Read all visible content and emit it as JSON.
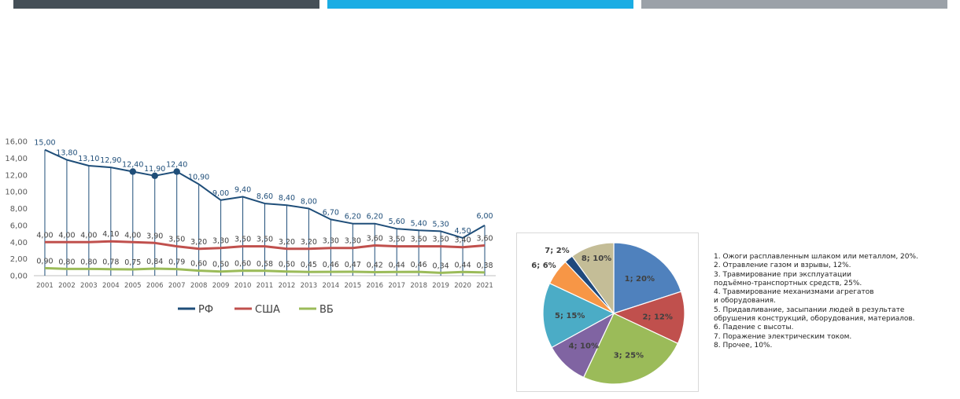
{
  "colors": {
    "bar1": "#454F57",
    "bar2": "#1AADE4",
    "bar3": "#9BA1A8"
  },
  "chart_data": [
    {
      "type": "line",
      "categories": [
        "2001",
        "2002",
        "2003",
        "2004",
        "2005",
        "2006",
        "2007",
        "2008",
        "2009",
        "2010",
        "2011",
        "2012",
        "2013",
        "2014",
        "2015",
        "2016",
        "2017",
        "2018",
        "2019",
        "2020",
        "2021"
      ],
      "y_ticks": [
        "0,00",
        "2,00",
        "4,00",
        "6,00",
        "8,00",
        "10,00",
        "12,00",
        "14,00",
        "16,00"
      ],
      "ylim": [
        0,
        16
      ],
      "grid": false,
      "legend_position": "bottom",
      "series": [
        {
          "name": "РФ",
          "color": "#1F4E79",
          "values": [
            15.0,
            13.8,
            13.1,
            12.9,
            12.4,
            11.9,
            12.4,
            10.9,
            9.0,
            9.4,
            8.6,
            8.4,
            8.0,
            6.7,
            6.2,
            6.2,
            5.6,
            5.4,
            5.3,
            4.5,
            6.0
          ],
          "labels": [
            "15,00",
            "13,80",
            "13,10",
            "12,90",
            "12,40",
            "11,90",
            "12,40",
            "10,90",
            "9,00",
            "9,40",
            "8,60",
            "8,40",
            "8,00",
            "6,70",
            "6,20",
            "6,20",
            "5,60",
            "5,40",
            "5,30",
            "4,50",
            "6,00"
          ]
        },
        {
          "name": "США",
          "color": "#C0504D",
          "values": [
            4.0,
            4.0,
            4.0,
            4.1,
            4.0,
            3.9,
            3.5,
            3.2,
            3.3,
            3.5,
            3.5,
            3.2,
            3.2,
            3.3,
            3.3,
            3.6,
            3.5,
            3.5,
            3.5,
            3.4,
            3.6
          ],
          "labels": [
            "4,00",
            "4,00",
            "4,00",
            "4,10",
            "4,00",
            "3,90",
            "3,50",
            "3,20",
            "3,30",
            "3,50",
            "3,50",
            "3,20",
            "3,20",
            "3,30",
            "3,30",
            "3,60",
            "3,50",
            "3,50",
            "3,50",
            "3,40",
            "3,60"
          ]
        },
        {
          "name": "ВБ",
          "color": "#9BBB59",
          "values": [
            0.9,
            0.8,
            0.8,
            0.78,
            0.75,
            0.84,
            0.79,
            0.6,
            0.5,
            0.6,
            0.58,
            0.5,
            0.45,
            0.46,
            0.47,
            0.42,
            0.44,
            0.46,
            0.34,
            0.44,
            0.38
          ],
          "labels": [
            "0,90",
            "0,80",
            "0,80",
            "0,78",
            "0,75",
            "0,84",
            "0,79",
            "0,60",
            "0,50",
            "0,60",
            "0,58",
            "0,50",
            "0,45",
            "0,46",
            "0,47",
            "0,42",
            "0,44",
            "0,46",
            "0,34",
            "0,44",
            "0,38"
          ]
        }
      ]
    },
    {
      "type": "pie",
      "slices": [
        {
          "label": "1; 20%",
          "value": 20,
          "color": "#4F81BD"
        },
        {
          "label": "2; 12%",
          "value": 12,
          "color": "#C0504D"
        },
        {
          "label": "3; 25%",
          "value": 25,
          "color": "#9BBB59"
        },
        {
          "label": "4; 10%",
          "value": 10,
          "color": "#8064A2"
        },
        {
          "label": "5; 15%",
          "value": 15,
          "color": "#4BACC6"
        },
        {
          "label": "6; 6%",
          "value": 6,
          "color": "#F79646"
        },
        {
          "label": "7; 2%",
          "value": 2,
          "color": "#1F497D"
        },
        {
          "label": "8; 10%",
          "value": 10,
          "color": "#C4BD97"
        }
      ]
    }
  ],
  "legend_text": [
    "1. Ожоги расплавленным шлаком или металлом, 20%.",
    "2. Отравление газом и взрывы, 12%.",
    "3. Травмирование при эксплуатации",
    "подъёмно-транспортных средств, 25%.",
    "4. Травмирование механизмами агрегатов",
    "и оборудования.",
    "5. Придавливание, засыпании людей в результате",
    "обрушения конструкций, оборудования, материалов.",
    "6. Падение с высоты.",
    "7. Поражение электрическим током.",
    "8. Прочее, 10%."
  ]
}
